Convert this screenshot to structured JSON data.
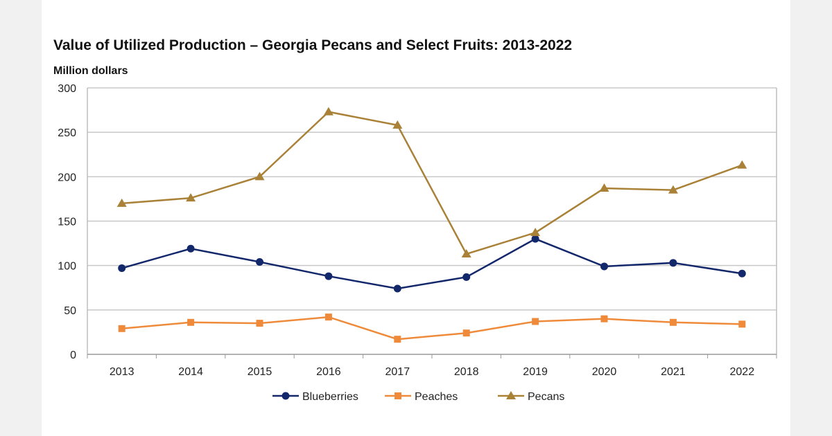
{
  "chart_data": {
    "type": "line",
    "title": "Value of Utilized Production – Georgia Pecans and Select Fruits: 2013-2022",
    "ylabel": "Million dollars",
    "xlabel": "",
    "x": [
      "2013",
      "2014",
      "2015",
      "2016",
      "2017",
      "2018",
      "2019",
      "2020",
      "2021",
      "2022"
    ],
    "ylim": [
      0,
      300
    ],
    "yticks": [
      0,
      50,
      100,
      150,
      200,
      250,
      300
    ],
    "grid": true,
    "legend_placement": "bottom",
    "series": [
      {
        "name": "Blueberries",
        "color": "#13276b",
        "marker": "circle",
        "values": [
          97,
          119,
          104,
          88,
          74,
          87,
          130,
          99,
          103,
          91
        ]
      },
      {
        "name": "Peaches",
        "color": "#ee8a3a",
        "marker": "square",
        "values": [
          29,
          36,
          35,
          42,
          17,
          24,
          37,
          40,
          36,
          34
        ]
      },
      {
        "name": "Pecans",
        "color": "#a98137",
        "marker": "triangle",
        "values": [
          170,
          176,
          200,
          273,
          258,
          113,
          137,
          187,
          185,
          213
        ]
      }
    ]
  }
}
